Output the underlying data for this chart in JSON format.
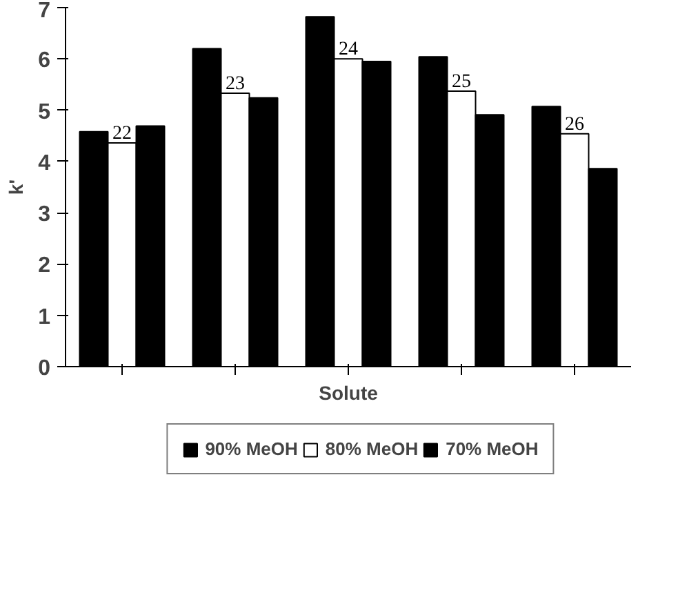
{
  "chart_data": {
    "type": "bar",
    "xlabel": "Solute",
    "ylabel": "k'",
    "categories": [
      null,
      null,
      null,
      null,
      null
    ],
    "series": [
      {
        "name": "90% MeOH",
        "color": "#000000",
        "values": [
          4.58,
          6.2,
          6.82,
          6.04,
          5.07
        ]
      },
      {
        "name": "80% MeOH",
        "color": "#ffffff",
        "values": [
          4.36,
          5.33,
          6.0,
          5.37,
          4.54
        ]
      },
      {
        "name": "70% MeOH",
        "color": "#000000",
        "values": [
          4.69,
          5.24,
          5.95,
          4.91,
          3.86
        ]
      }
    ],
    "annotations": [
      {
        "text": "22",
        "y": 4.36
      },
      {
        "text": "23",
        "y": 5.33
      },
      {
        "text": "24",
        "y": 6.0
      },
      {
        "text": "25",
        "y": 5.37
      },
      {
        "text": "26",
        "y": 4.54
      }
    ],
    "ylim": [
      0,
      7
    ],
    "yticks": [
      0,
      1,
      2,
      3,
      4,
      5,
      6,
      7
    ],
    "grid": false,
    "legend": "bottom"
  }
}
